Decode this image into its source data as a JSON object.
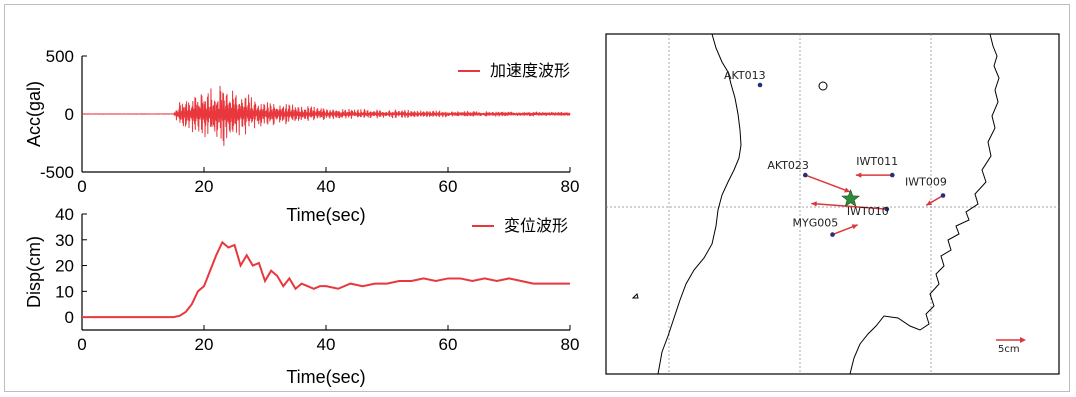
{
  "chart_data": [
    {
      "type": "line",
      "ylabel": "Acc(gal)",
      "xlabel": "",
      "xlim": [
        0,
        80
      ],
      "ylim": [
        -500,
        500
      ],
      "xticks": [
        "0",
        "20",
        "40",
        "60",
        "80"
      ],
      "yticks": [
        "500",
        "0",
        "-500"
      ],
      "series": [
        {
          "name": "加速度波形",
          "color": "#e8383d",
          "envelope": [
            [
              0,
              0
            ],
            [
              15,
              0
            ],
            [
              16,
              120
            ],
            [
              18,
              160
            ],
            [
              20,
              230
            ],
            [
              22,
              260
            ],
            [
              23,
              320
            ],
            [
              24,
              250
            ],
            [
              26,
              200
            ],
            [
              28,
              160
            ],
            [
              30,
              120
            ],
            [
              35,
              80
            ],
            [
              40,
              60
            ],
            [
              50,
              40
            ],
            [
              60,
              30
            ],
            [
              70,
              22
            ],
            [
              80,
              18
            ]
          ]
        }
      ]
    },
    {
      "type": "line",
      "ylabel": "Disp(cm)",
      "xlabel": "Time(sec)",
      "xlim": [
        0,
        80
      ],
      "ylim": [
        -5,
        40
      ],
      "xticks": [
        "0",
        "20",
        "40",
        "60",
        "80"
      ],
      "yticks": [
        "40",
        "30",
        "20",
        "10",
        "0"
      ],
      "series": [
        {
          "name": "変位波形",
          "color": "#e8383d",
          "x": [
            0,
            15,
            16,
            17,
            18,
            19,
            20,
            21,
            22,
            23,
            24,
            25,
            26,
            27,
            28,
            29,
            30,
            31,
            32,
            33,
            34,
            35,
            36,
            37,
            38,
            39,
            40,
            42,
            44,
            46,
            48,
            50,
            52,
            54,
            56,
            58,
            60,
            62,
            64,
            66,
            68,
            70,
            72,
            74,
            76,
            78,
            80
          ],
          "y": [
            0,
            0,
            0.5,
            2,
            5,
            10,
            12,
            18,
            24,
            29,
            27,
            28,
            20,
            24,
            20,
            21,
            14,
            18,
            16,
            12,
            15,
            11,
            13,
            12,
            11,
            12,
            12,
            11,
            13,
            12,
            13,
            13,
            14,
            14,
            15,
            14,
            15,
            15,
            14,
            15,
            14,
            15,
            14,
            13,
            13,
            13,
            13
          ]
        }
      ]
    },
    {
      "type": "scatter",
      "stations": [
        {
          "id": "AKT013",
          "lon": 140.35,
          "lat": 39.7
        },
        {
          "id": "AKT023",
          "lon": 140.6,
          "lat": 39.17
        },
        {
          "id": "IWT011",
          "lon": 141.08,
          "lat": 39.17
        },
        {
          "id": "IWT009",
          "lon": 141.36,
          "lat": 39.05
        },
        {
          "id": "IWT010",
          "lon": 141.05,
          "lat": 38.97
        },
        {
          "id": "MYG005",
          "lon": 140.75,
          "lat": 38.82
        }
      ],
      "epicenter": {
        "lon": 140.85,
        "lat": 39.03
      },
      "scale_label": "5cm",
      "arrow_color": "#d9393b",
      "star_color": "#2e8b3a"
    }
  ]
}
